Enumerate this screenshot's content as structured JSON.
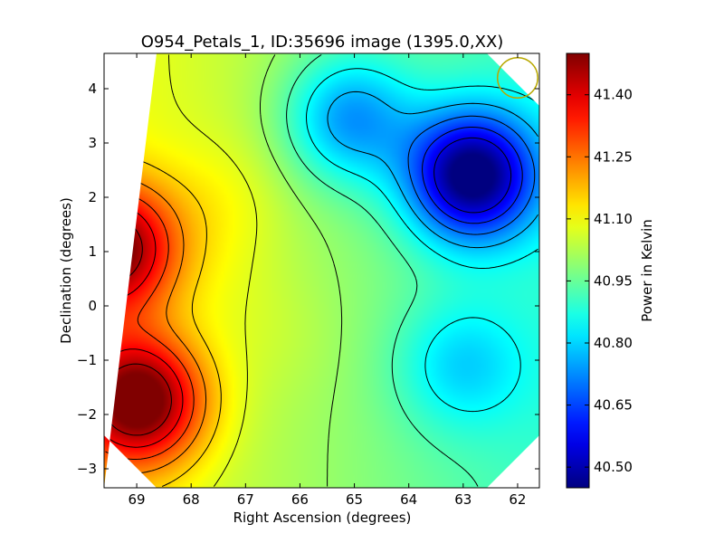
{
  "chart_data": {
    "type": "heatmap",
    "title": "O954_Petals_1, ID:35696 image (1395.0,XX)",
    "xlabel": "Right Ascension (degrees)",
    "ylabel": "Declination (degrees)",
    "xlim": [
      69.6,
      61.6
    ],
    "ylim": [
      -3.35,
      4.65
    ],
    "x_ticks": [
      69,
      68,
      67,
      66,
      65,
      64,
      63,
      62
    ],
    "y_ticks": [
      -3,
      -2,
      -1,
      0,
      1,
      2,
      3,
      4
    ],
    "colorbar": {
      "label": "Power in Kelvin",
      "range": [
        40.45,
        41.5
      ],
      "ticks": [
        "40.50",
        "40.65",
        "40.80",
        "40.95",
        "41.10",
        "41.25",
        "41.40"
      ],
      "tick_values": [
        40.5,
        40.65,
        40.8,
        40.95,
        41.1,
        41.25,
        41.4
      ],
      "colormap": "jet"
    },
    "field_extrema": [
      {
        "ra": 69.45,
        "dec": 1.05,
        "value": 41.44
      },
      {
        "ra": 68.95,
        "dec": -1.75,
        "value": 41.48
      },
      {
        "ra": 62.85,
        "dec": 2.4,
        "value": 40.47
      },
      {
        "ra": 65.1,
        "dec": 3.45,
        "value": 40.75
      },
      {
        "ra": 63.05,
        "dec": -1.1,
        "value": 40.86
      },
      {
        "ra": 67.4,
        "dec": 1.95,
        "value": 41.05
      },
      {
        "ra": 66.25,
        "dec": -0.6,
        "value": 41.02
      },
      {
        "ra": 67.2,
        "dec": 0.4,
        "value": 41.02
      }
    ],
    "beam_marker": {
      "ra": 62.0,
      "dec": 4.2,
      "radius_deg": 0.37,
      "color": "#b8a800"
    },
    "contours": true,
    "mask_color": "#ffffff"
  }
}
